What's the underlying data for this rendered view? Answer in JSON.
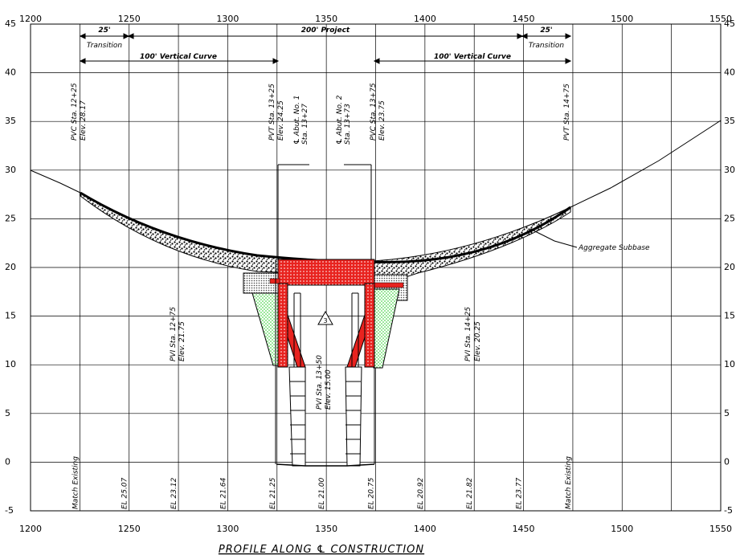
{
  "title": "PROFILE ALONG ℄ CONSTRUCTION",
  "axes": {
    "stations": [
      1200,
      1250,
      1300,
      1350,
      1400,
      1450,
      1500,
      1550
    ],
    "elevations": [
      45,
      40,
      35,
      30,
      25,
      20,
      15,
      10,
      5,
      0,
      -5
    ],
    "elev_labels_left": [
      "45",
      "40",
      "35",
      "30",
      "25",
      "20",
      "15",
      "10",
      "5",
      "0",
      "-5"
    ],
    "elev_labels_right": [
      "45",
      "40",
      "35",
      "30",
      "25",
      "20",
      "15",
      "10",
      "5",
      "0",
      "-5"
    ],
    "station_range": [
      1200,
      1550
    ],
    "elev_range": [
      -5,
      45
    ],
    "grid": true
  },
  "dimensions": {
    "transition_left": {
      "len": "25'",
      "label": "Transition"
    },
    "transition_right": {
      "len": "25'",
      "label": "Transition"
    },
    "project": "200' Project",
    "vc_left": "100' Vertical Curve",
    "vc_right": "100' Vertical Curve"
  },
  "vertical_labels": {
    "pvc1": "PVC Sta. 12+25",
    "pvc1_elev": "Elev. 28.17",
    "pvt1": "PVT Sta. 13+25",
    "pvt1_elev": "Elev. 24.25",
    "abut1": "℄ Abut. No. 1",
    "abut1_sta": "Sta. 13+27",
    "abut2": "℄ Abut. No. 2",
    "abut2_sta": "Sta. 13+73",
    "pvc2": "PVC Sta. 13+75",
    "pvc2_elev": "Elev. 23.75",
    "pvt2": "PVT Sta. 14+75",
    "pvi1": "PVI Sta. 12+75",
    "pvi1_elev": "Elev. 21.75",
    "pvi2": "PVI Sta. 13+50",
    "pvi2_elev": "Elev. 15.00",
    "pvi3": "PVI Sta. 14+25",
    "pvi3_elev": "Elev. 20.25",
    "aggregate": "Aggregate Subbase",
    "pvi_marker": "3"
  },
  "bottom_labels": [
    {
      "sta": 1225,
      "text": "Match Existing"
    },
    {
      "sta": 1250,
      "text": "EL 25.07"
    },
    {
      "sta": 1275,
      "text": "EL 23.12"
    },
    {
      "sta": 1300,
      "text": "EL 21.64"
    },
    {
      "sta": 1325,
      "text": "EL 21.25"
    },
    {
      "sta": 1350,
      "text": "EL 21.00"
    },
    {
      "sta": 1375,
      "text": "EL 20.75"
    },
    {
      "sta": 1400,
      "text": "EL 20.92"
    },
    {
      "sta": 1425,
      "text": "EL 21.82"
    },
    {
      "sta": 1450,
      "text": "EL 23.77"
    },
    {
      "sta": 1475,
      "text": "Match Existing"
    }
  ],
  "colors": {
    "line": "#000000",
    "deck": "#e8231f",
    "fill_green": "#22cc22",
    "grid": "#000000"
  }
}
